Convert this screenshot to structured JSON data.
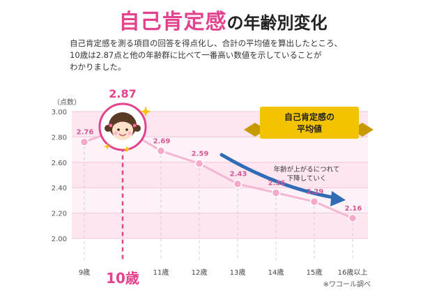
{
  "header": {
    "title_main": "自己肯定感",
    "title_rest": "の年齢別変化",
    "description": [
      "自己肯定感を測る項目の回答を得点化し、合計の平均値を算出したところ、",
      "10歳は2.87点と他の年齢群に比べて一番高い数値を示していることが",
      "わかりました。"
    ]
  },
  "chart_data": {
    "type": "line",
    "y_unit_label": "（点数）",
    "categories": [
      "9歳",
      "10歳",
      "11歳",
      "12歳",
      "13歳",
      "14歳",
      "15歳",
      "16歳以上"
    ],
    "values": [
      2.76,
      2.87,
      2.69,
      2.59,
      2.43,
      2.36,
      2.29,
      2.16
    ],
    "value_labels": [
      "2.76",
      "2.87",
      "2.69",
      "2.59",
      "2.43",
      "2.36",
      "2.29",
      "2.16"
    ],
    "y_ticks": [
      "3.00",
      "2.80",
      "2.60",
      "2.40",
      "2.20",
      "2.00"
    ],
    "ylim": [
      2.0,
      3.0
    ],
    "highlight_index": 1,
    "banner_lines": [
      "自己肯定感の",
      "平均値"
    ],
    "trend_lines": [
      "年齢が上がるにつれて",
      "下降していく"
    ],
    "source": "※ワコール調べ",
    "colors": {
      "accent": "#e2438c",
      "line": "#f4b6d2",
      "point": "#f6a9ca",
      "band": "#fde6f0",
      "band_alt": "#fdf2f7",
      "arrow": "#2f6cb5",
      "banner": "#f3c300"
    }
  }
}
